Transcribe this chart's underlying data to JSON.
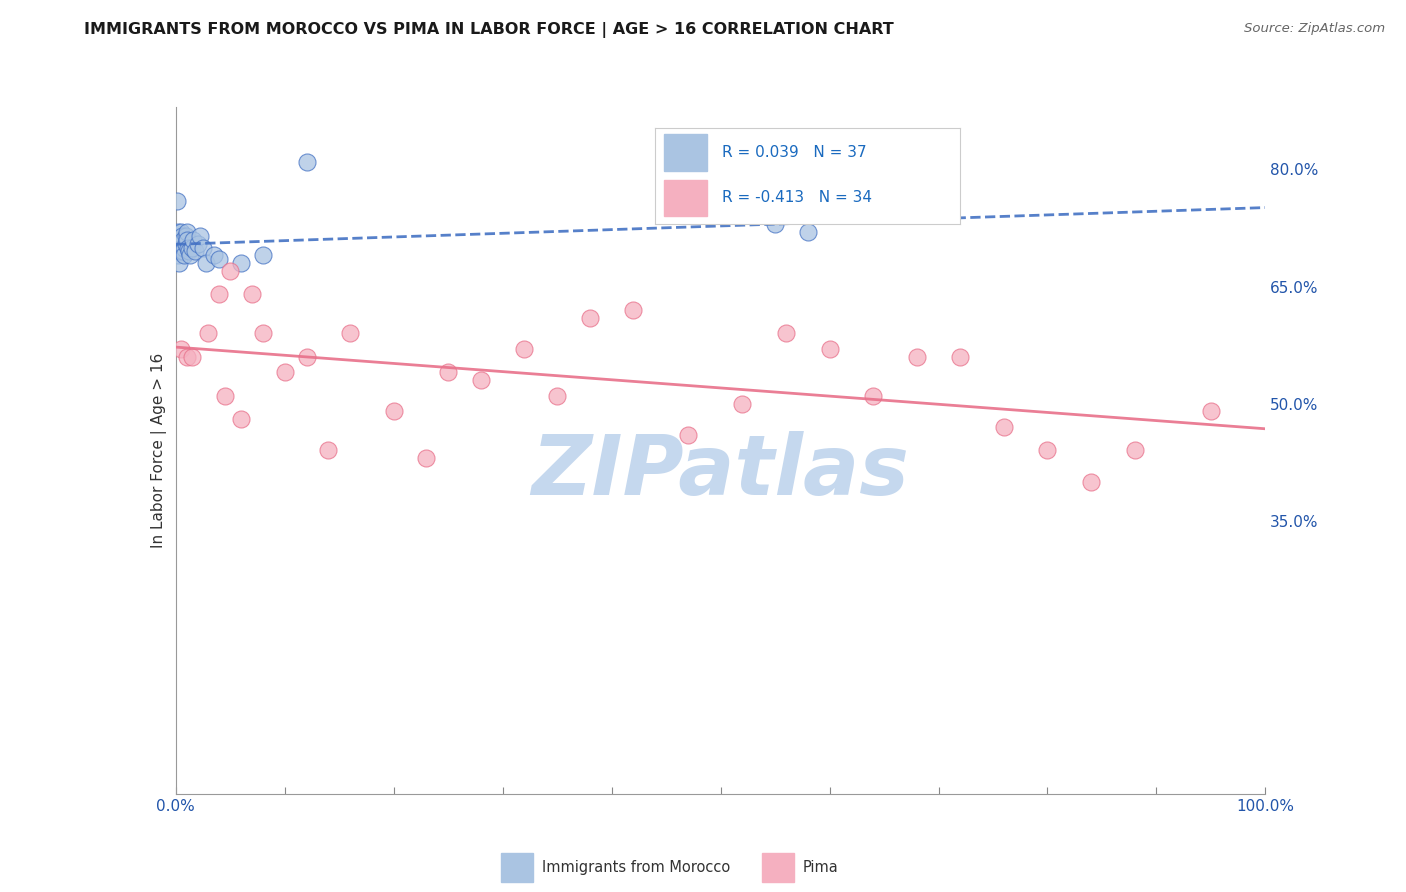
{
  "title": "IMMIGRANTS FROM MOROCCO VS PIMA IN LABOR FORCE | AGE > 16 CORRELATION CHART",
  "source_text": "Source: ZipAtlas.com",
  "ylabel": "In Labor Force | Age > 16",
  "xlim": [
    0.0,
    1.0
  ],
  "ylim": [
    0.0,
    0.88
  ],
  "right_yticks": [
    0.35,
    0.5,
    0.65,
    0.8
  ],
  "right_yticklabels": [
    "35.0%",
    "50.0%",
    "65.0%",
    "80.0%"
  ],
  "morocco_R": 0.039,
  "morocco_N": 37,
  "pima_R": -0.413,
  "pima_N": 34,
  "morocco_color": "#aac4e2",
  "pima_color": "#f5b0c0",
  "morocco_line_color": "#4472c4",
  "pima_line_color": "#e8708a",
  "background_color": "#ffffff",
  "grid_color": "#cccccc",
  "watermark_text": "ZIPatlas",
  "watermark_color": "#c5d8ee",
  "title_color": "#1a1a1a",
  "legend_text_color": "#1a6abf",
  "morocco_x": [
    0.001,
    0.001,
    0.002,
    0.002,
    0.003,
    0.003,
    0.004,
    0.004,
    0.005,
    0.005,
    0.006,
    0.006,
    0.007,
    0.007,
    0.008,
    0.008,
    0.009,
    0.009,
    0.01,
    0.01,
    0.011,
    0.012,
    0.013,
    0.015,
    0.016,
    0.018,
    0.02,
    0.022,
    0.025,
    0.028,
    0.035,
    0.04,
    0.06,
    0.08,
    0.12,
    0.55,
    0.58
  ],
  "morocco_y": [
    0.76,
    0.7,
    0.72,
    0.69,
    0.7,
    0.68,
    0.71,
    0.695,
    0.72,
    0.705,
    0.715,
    0.7,
    0.695,
    0.71,
    0.7,
    0.69,
    0.705,
    0.715,
    0.72,
    0.71,
    0.7,
    0.695,
    0.69,
    0.7,
    0.71,
    0.695,
    0.705,
    0.715,
    0.7,
    0.68,
    0.69,
    0.685,
    0.68,
    0.69,
    0.81,
    0.73,
    0.72
  ],
  "pima_x": [
    0.005,
    0.01,
    0.015,
    0.03,
    0.04,
    0.045,
    0.05,
    0.06,
    0.07,
    0.08,
    0.1,
    0.12,
    0.14,
    0.16,
    0.2,
    0.23,
    0.25,
    0.28,
    0.32,
    0.35,
    0.38,
    0.42,
    0.47,
    0.52,
    0.56,
    0.6,
    0.64,
    0.68,
    0.72,
    0.76,
    0.8,
    0.84,
    0.88,
    0.95
  ],
  "pima_y": [
    0.57,
    0.56,
    0.56,
    0.59,
    0.64,
    0.51,
    0.67,
    0.48,
    0.64,
    0.59,
    0.54,
    0.56,
    0.44,
    0.59,
    0.49,
    0.43,
    0.54,
    0.53,
    0.57,
    0.51,
    0.61,
    0.62,
    0.46,
    0.5,
    0.59,
    0.57,
    0.51,
    0.56,
    0.56,
    0.47,
    0.44,
    0.4,
    0.44,
    0.49
  ],
  "xtick_positions": [
    0.0,
    0.1,
    0.2,
    0.3,
    0.4,
    0.5,
    0.6,
    0.7,
    0.8,
    0.9,
    1.0
  ],
  "xtick_edge_labels": [
    "0.0%",
    "100.0%"
  ]
}
